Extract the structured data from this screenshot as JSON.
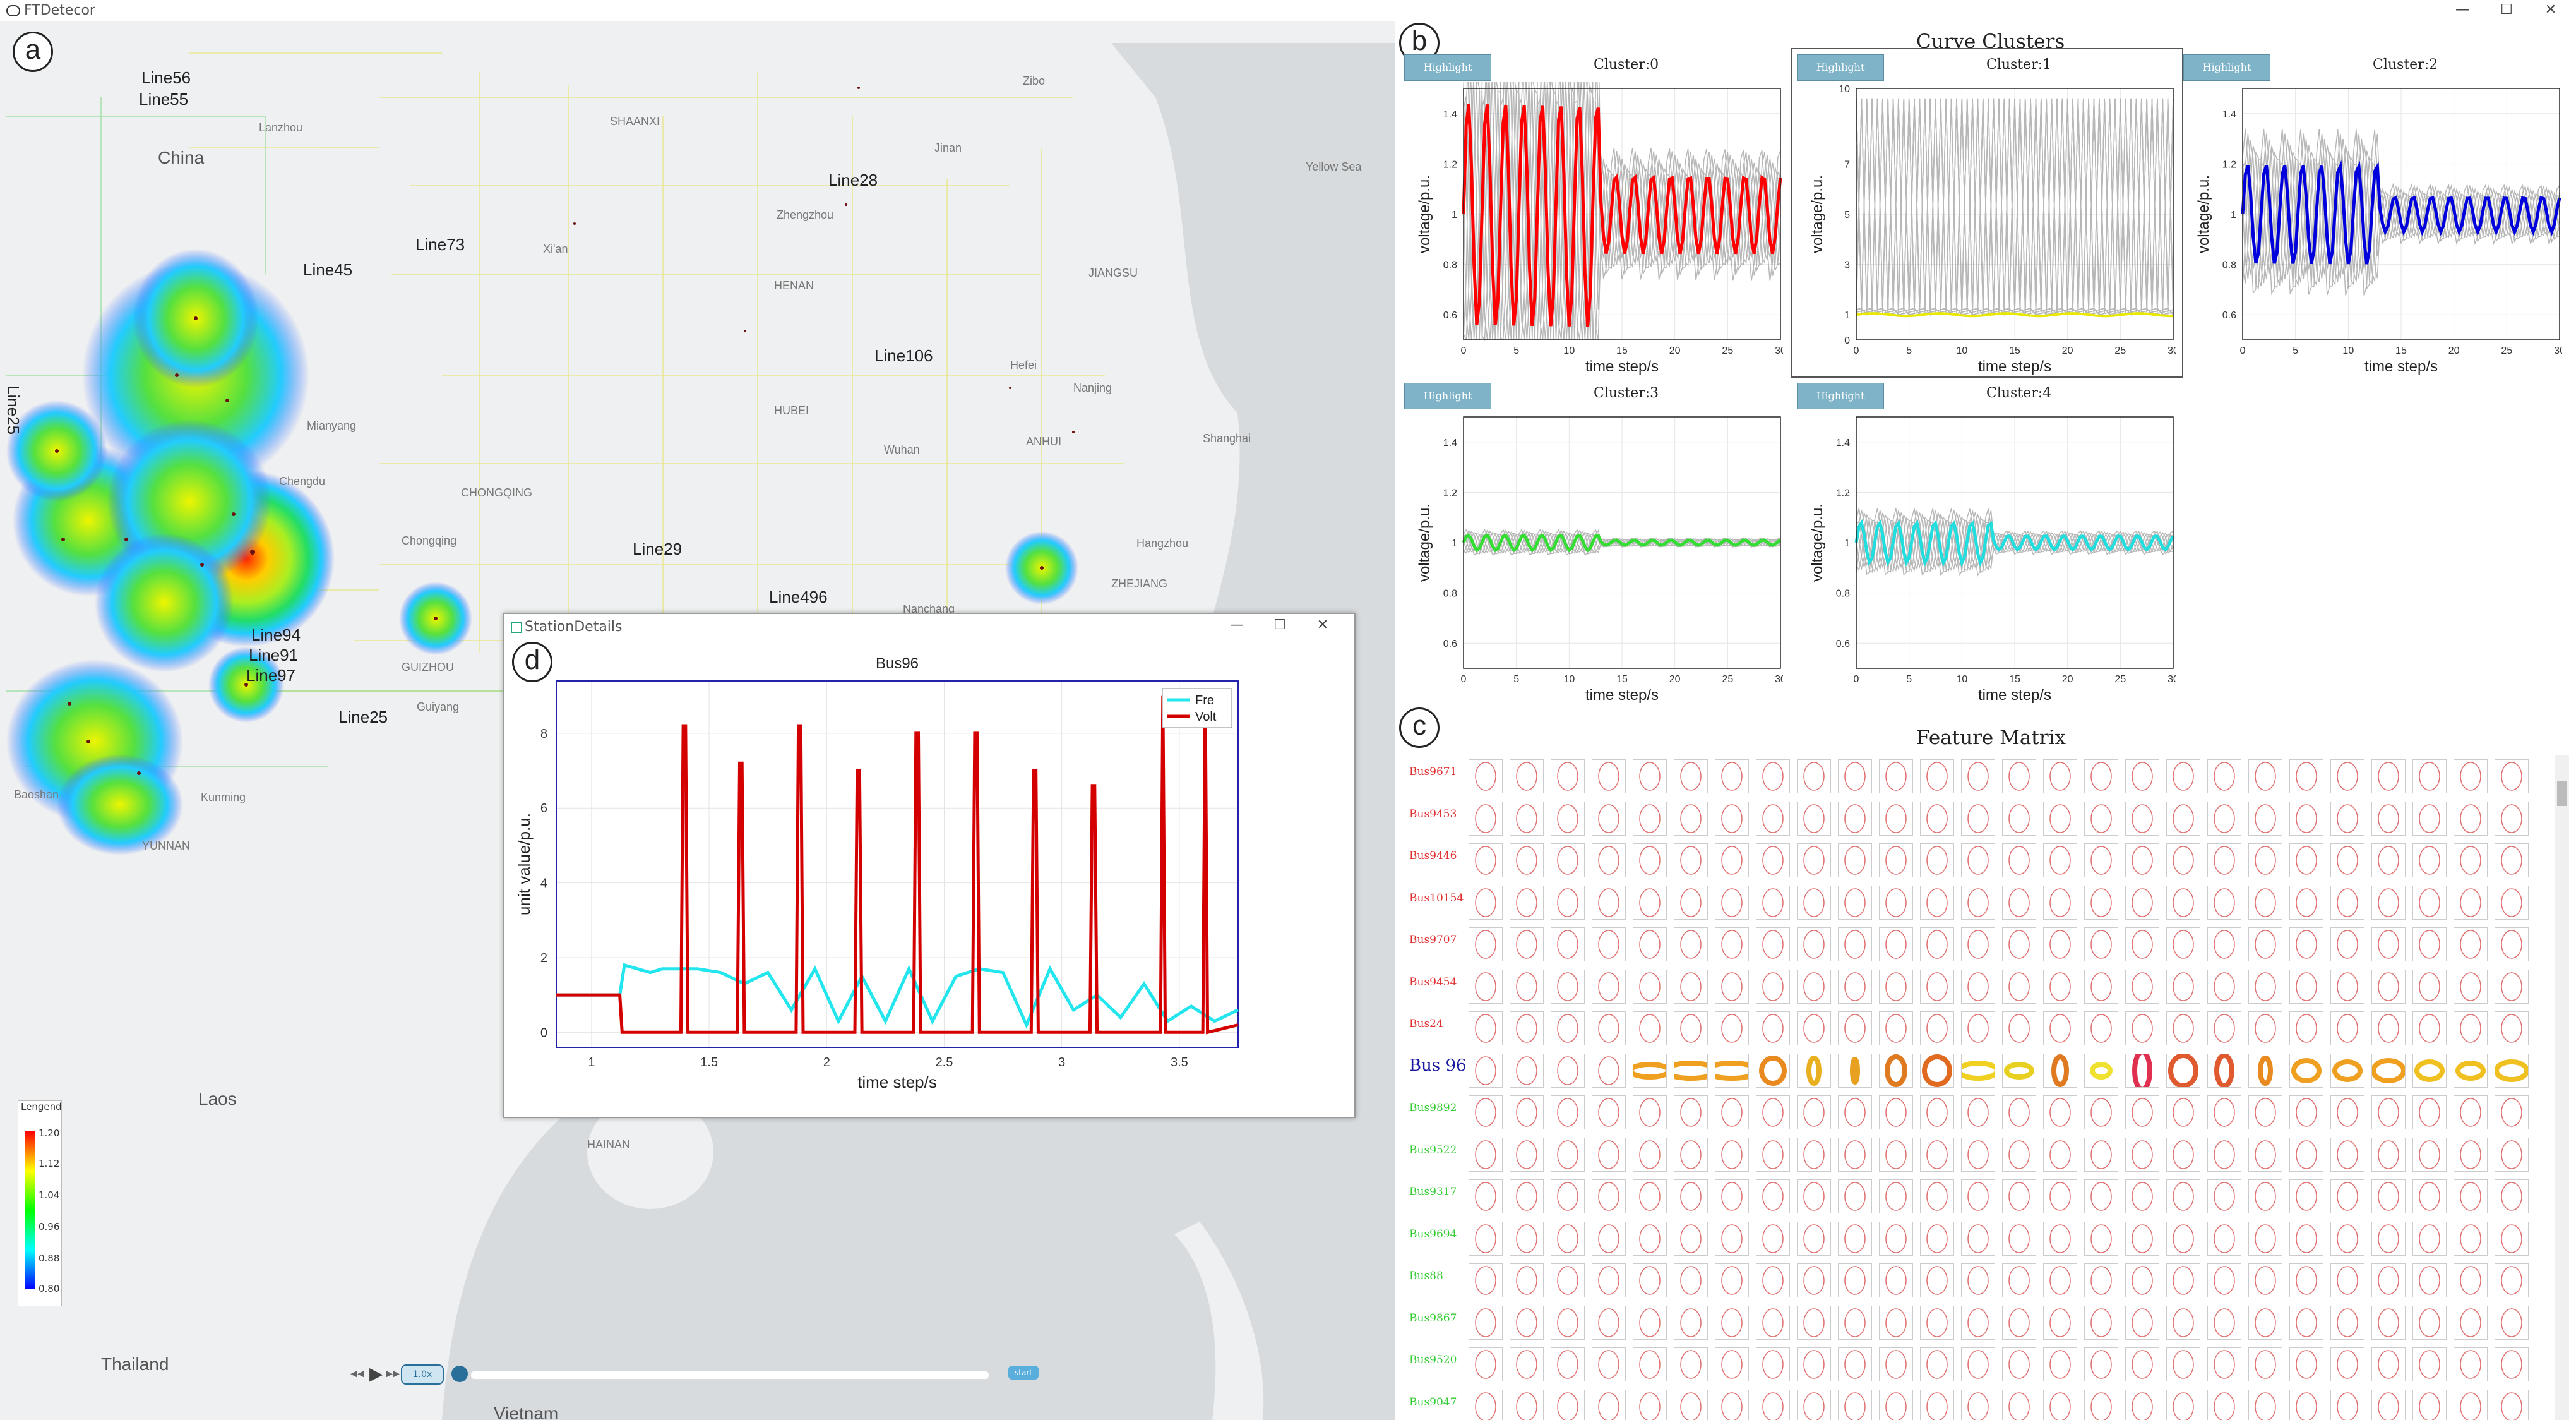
{
  "window": {
    "title": "FTDetecor",
    "minimize": "—",
    "maximize": "☐",
    "close": "✕"
  },
  "map": {
    "panel_label": "a",
    "countries": [
      "China",
      "Laos",
      "Thailand",
      "Vietnam"
    ],
    "places": [
      "Lanzhou",
      "Xi'an",
      "Zhengzhou",
      "Jinan",
      "Zibo",
      "HENAN",
      "HUBEI",
      "ANHUI",
      "JIANGSU",
      "ZHEJIANG",
      "CHONGQING",
      "GUIZHOU",
      "YUNNAN",
      "SHAANXI",
      "Wuhan",
      "Hefei",
      "Nanjing",
      "Shanghai",
      "Chongqing",
      "Chengdu",
      "Guiyang",
      "Kunming",
      "Nanchang",
      "Hangzhou",
      "Yellow Sea",
      "Mianyang",
      "HAINAN",
      "Baoshan"
    ],
    "lines": [
      "Line56",
      "Line55",
      "Line73",
      "Line45",
      "Line28",
      "Line106",
      "Line25",
      "Line29",
      "Line496",
      "Line94",
      "Line91",
      "Line97",
      "Line25"
    ],
    "legend": {
      "title": "Lengend",
      "ticks": [
        "1.20",
        "1.12",
        "1.04",
        "0.96",
        "0.88",
        "0.80"
      ]
    },
    "playback": {
      "speed": "1.0x",
      "start": "start"
    }
  },
  "details": {
    "panel_label": "d",
    "window_title": "StationDetails",
    "chart_title": "Bus96",
    "xlabel": "time step/s",
    "ylabel": "unit value/p.u.",
    "xticks": [
      "1",
      "1.5",
      "2",
      "2.5",
      "3",
      "3.5"
    ],
    "yticks": [
      "0",
      "2",
      "4",
      "6",
      "8"
    ],
    "legend": [
      "Fre",
      "Volt"
    ],
    "colors": {
      "fre": "#22e5ee",
      "volt": "#d40000"
    }
  },
  "chart_data": [
    {
      "type": "line",
      "title": "Bus96",
      "xlabel": "time step/s",
      "ylabel": "unit value/p.u.",
      "xlim": [
        0.85,
        3.75
      ],
      "ylim": [
        -0.4,
        9.4
      ],
      "series": [
        {
          "name": "Volt",
          "x": [
            0.85,
            1.12,
            1.13,
            1.38,
            1.39,
            1.4,
            1.41,
            1.62,
            1.63,
            1.64,
            1.65,
            1.87,
            1.88,
            1.89,
            1.9,
            2.12,
            2.13,
            2.14,
            2.15,
            2.37,
            2.38,
            2.39,
            2.4,
            2.62,
            2.63,
            2.64,
            2.65,
            2.87,
            2.88,
            2.89,
            2.9,
            3.12,
            3.13,
            3.14,
            3.15,
            3.42,
            3.43,
            3.44,
            3.6,
            3.61,
            3.62,
            3.75
          ],
          "y": [
            1.0,
            1.0,
            0,
            0,
            8.2,
            8.2,
            0,
            0,
            7.2,
            7.2,
            0,
            0,
            8.2,
            8.2,
            0,
            0,
            7.0,
            7.0,
            0,
            0,
            8.0,
            8.0,
            0,
            0,
            8.0,
            8.0,
            0,
            0,
            7.0,
            7.0,
            0,
            0,
            6.6,
            6.6,
            0,
            0,
            9.0,
            0,
            0,
            9.0,
            0,
            0.2
          ]
        },
        {
          "name": "Fre",
          "x": [
            0.85,
            1.12,
            1.14,
            1.25,
            1.3,
            1.45,
            1.55,
            1.65,
            1.75,
            1.85,
            1.95,
            2.05,
            2.15,
            2.25,
            2.35,
            2.45,
            2.55,
            2.65,
            2.75,
            2.85,
            2.95,
            3.05,
            3.15,
            3.25,
            3.35,
            3.45,
            3.55,
            3.65,
            3.75
          ],
          "y": [
            1.0,
            1.0,
            1.8,
            1.6,
            1.7,
            1.7,
            1.6,
            1.3,
            1.6,
            0.6,
            1.7,
            0.3,
            1.5,
            0.3,
            1.7,
            0.3,
            1.5,
            1.7,
            1.6,
            0.2,
            1.7,
            0.6,
            1.0,
            0.4,
            1.3,
            0.3,
            0.7,
            0.3,
            0.6
          ]
        }
      ]
    },
    {
      "type": "line",
      "title": "Cluster:0",
      "xlabel": "time step/s",
      "ylabel": "voltage/p.u.",
      "xlim": [
        0,
        30
      ],
      "ylim": [
        0.5,
        1.5
      ],
      "series": [
        {
          "name": "Cluster:0",
          "color": "#ff0000"
        }
      ]
    },
    {
      "type": "line",
      "title": "Cluster:1",
      "xlabel": "time step/s",
      "ylabel": "voltage/p.u.",
      "xlim": [
        0,
        30
      ],
      "ylim": [
        0,
        10
      ],
      "series": [
        {
          "name": "Cluster:1",
          "color": "#e8e800"
        }
      ]
    },
    {
      "type": "line",
      "title": "Cluster:2",
      "xlabel": "time step/s",
      "ylabel": "voltage/p.u.",
      "xlim": [
        0,
        30
      ],
      "ylim": [
        0.5,
        1.5
      ],
      "series": [
        {
          "name": "Cluster:2",
          "color": "#0000dd"
        }
      ]
    },
    {
      "type": "line",
      "title": "Cluster:3",
      "xlabel": "time step/s",
      "ylabel": "voltage/p.u.",
      "xlim": [
        0,
        30
      ],
      "ylim": [
        0.5,
        1.5
      ],
      "series": [
        {
          "name": "Cluster:3",
          "color": "#33dd33"
        }
      ]
    },
    {
      "type": "line",
      "title": "Cluster:4",
      "xlabel": "time step/s",
      "ylabel": "voltage/p.u.",
      "xlim": [
        0,
        30
      ],
      "ylim": [
        0.5,
        1.5
      ],
      "series": [
        {
          "name": "Cluster:4",
          "color": "#22dddd"
        }
      ]
    }
  ],
  "clusters": {
    "panel_label": "b",
    "title": "Curve Clusters",
    "highlight": "Highlight",
    "xlabel": "time step/s",
    "ylabel": "voltage/p.u.",
    "xticks": [
      "0",
      "5",
      "10",
      "15",
      "20",
      "25",
      "30"
    ],
    "yticks_std": [
      "0.6",
      "0.8",
      "1",
      "1.2",
      "1.4"
    ],
    "yticks_big": [
      "0",
      "1",
      "3",
      "5",
      "7",
      "10"
    ],
    "items": [
      {
        "title": "Cluster:0"
      },
      {
        "title": "Cluster:1"
      },
      {
        "title": "Cluster:2"
      },
      {
        "title": "Cluster:3"
      },
      {
        "title": "Cluster:4"
      }
    ]
  },
  "features": {
    "panel_label": "c",
    "title": "Feature Matrix",
    "rows": [
      "Bus9671",
      "Bus9453",
      "Bus9446",
      "Bus10154",
      "Bus9707",
      "Bus9454",
      "Bus24",
      "Bus 96",
      "Bus9892",
      "Bus9522",
      "Bus9317",
      "Bus9694",
      "Bus88",
      "Bus9867",
      "Bus9520",
      "Bus9047"
    ],
    "row_colors": {
      "red": "#e03030",
      "highlight": "#1a1aa0",
      "green": "#33cc33"
    }
  }
}
